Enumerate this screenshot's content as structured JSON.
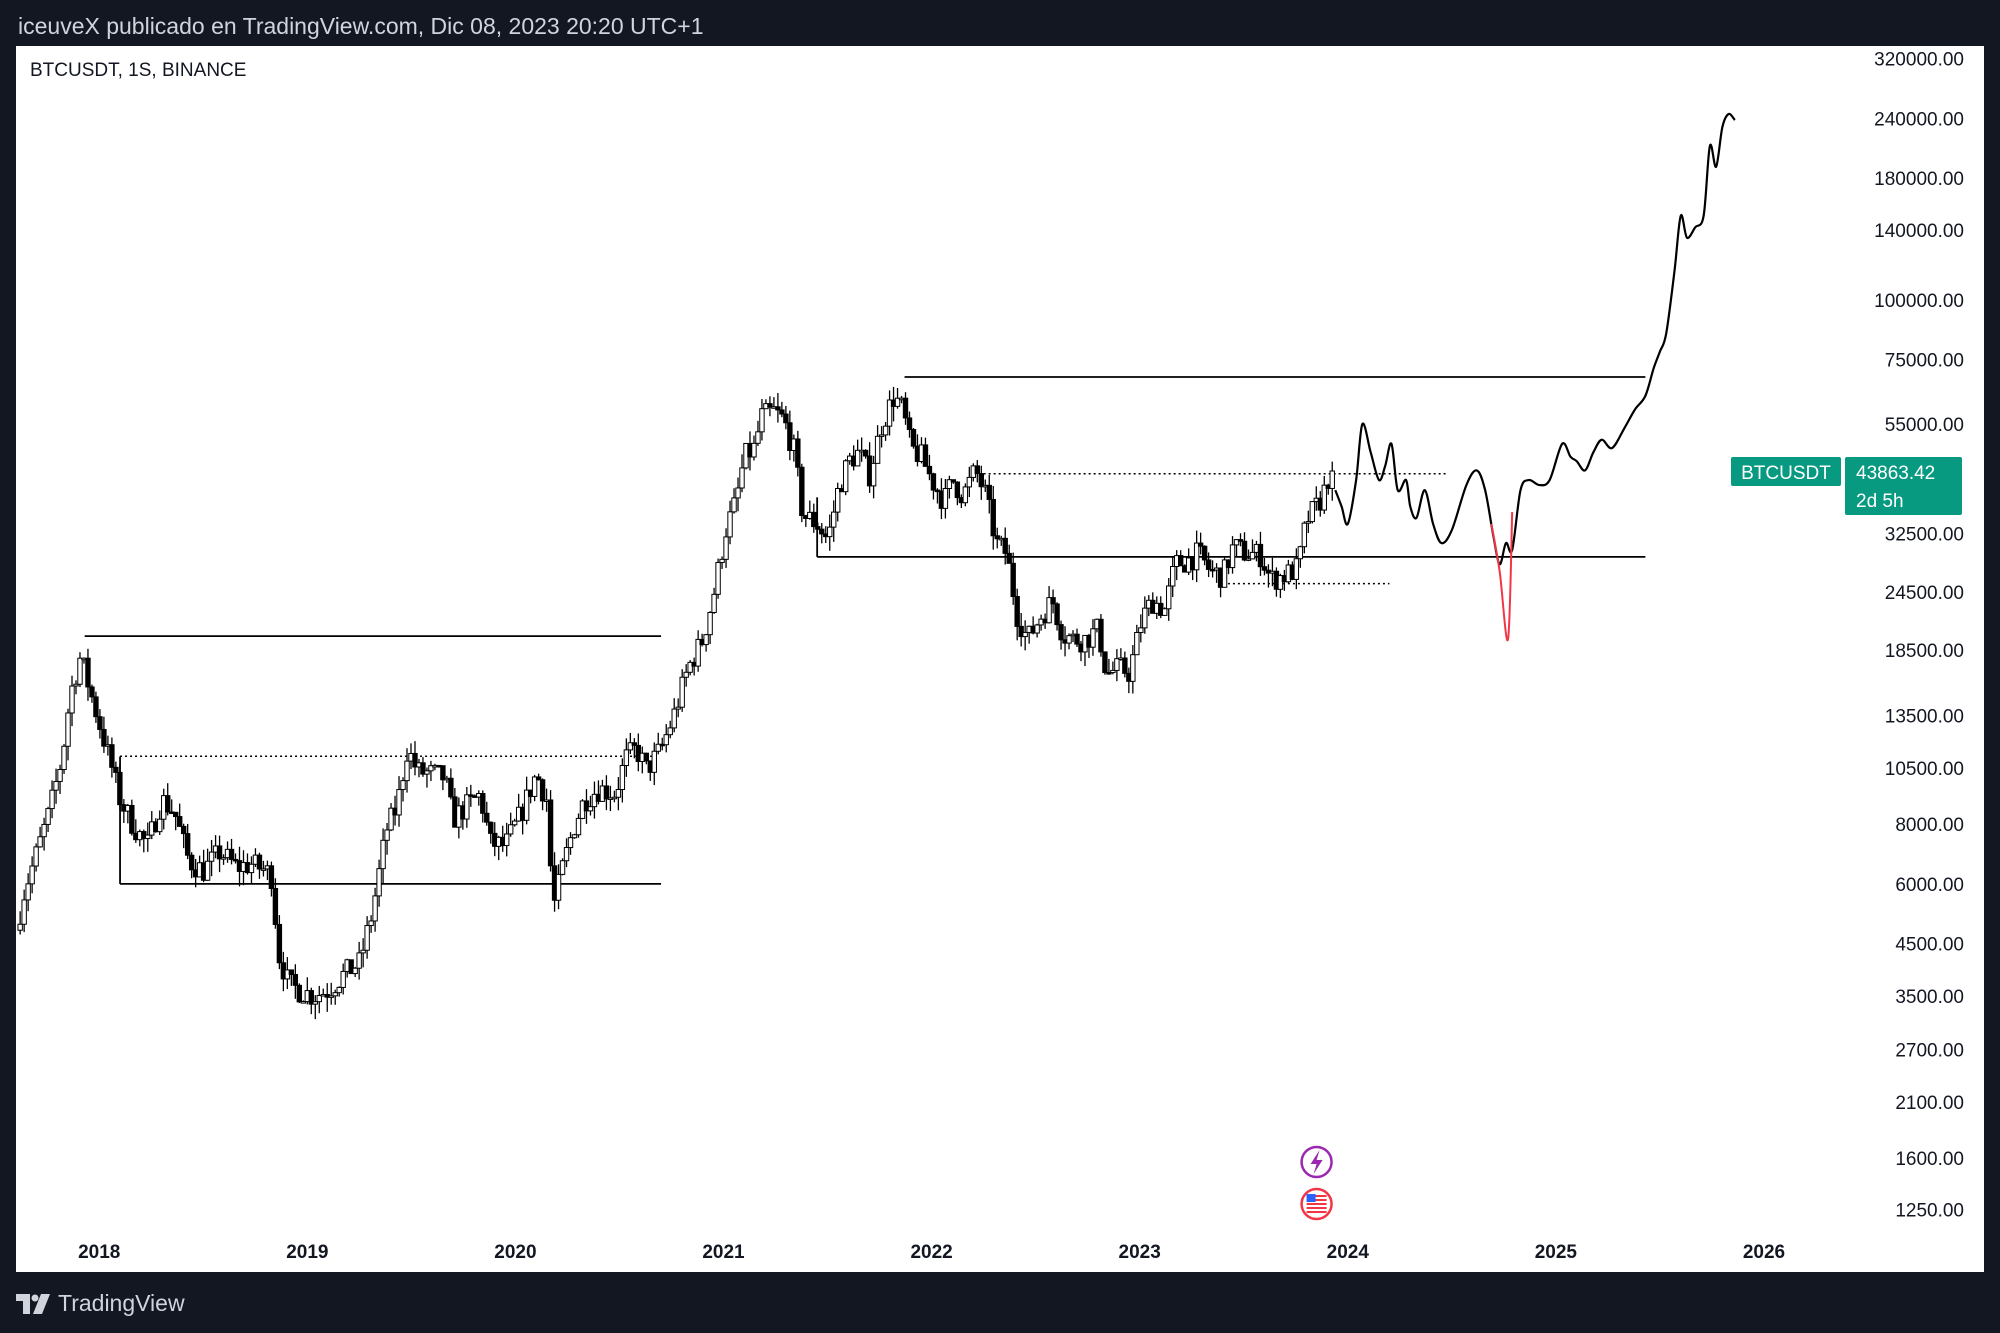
{
  "header": {
    "text": "iceuveX publicado en TradingView.com, Dic 08, 2023 20:20 UTC+1"
  },
  "footer": {
    "brand": "TradingView"
  },
  "chart_data": {
    "type": "candlestick",
    "title": "BTCUSDT, 1S, BINANCE",
    "y_scale": "log",
    "ylim": [
      1100,
      340000
    ],
    "xlim": [
      2017.6,
      2026.25
    ],
    "y_ticks": [
      {
        "value": 320000,
        "label": "320000.00"
      },
      {
        "value": 240000,
        "label": "240000.00"
      },
      {
        "value": 180000,
        "label": "180000.00"
      },
      {
        "value": 140000,
        "label": "140000.00"
      },
      {
        "value": 100000,
        "label": "100000.00"
      },
      {
        "value": 75000,
        "label": "75000.00"
      },
      {
        "value": 55000,
        "label": "55000.00"
      },
      {
        "value": 32500,
        "label": "32500.00"
      },
      {
        "value": 24500,
        "label": "24500.00"
      },
      {
        "value": 18500,
        "label": "18500.00"
      },
      {
        "value": 13500,
        "label": "13500.00"
      },
      {
        "value": 10500,
        "label": "10500.00"
      },
      {
        "value": 8000,
        "label": "8000.00"
      },
      {
        "value": 6000,
        "label": "6000.00"
      },
      {
        "value": 4500,
        "label": "4500.00"
      },
      {
        "value": 3500,
        "label": "3500.00"
      },
      {
        "value": 2700,
        "label": "2700.00"
      },
      {
        "value": 2100,
        "label": "2100.00"
      },
      {
        "value": 1600,
        "label": "1600.00"
      },
      {
        "value": 1250,
        "label": "1250.00"
      }
    ],
    "x_ticks": [
      {
        "value": 2018,
        "label": "2018"
      },
      {
        "value": 2019,
        "label": "2019"
      },
      {
        "value": 2020,
        "label": "2020"
      },
      {
        "value": 2021,
        "label": "2021"
      },
      {
        "value": 2022,
        "label": "2022"
      },
      {
        "value": 2023,
        "label": "2023"
      },
      {
        "value": 2024,
        "label": "2024"
      },
      {
        "value": 2025,
        "label": "2025"
      },
      {
        "value": 2026,
        "label": "2026"
      }
    ],
    "price_anchors": [
      [
        2017.62,
        4800
      ],
      [
        2017.66,
        5800
      ],
      [
        2017.72,
        7000
      ],
      [
        2017.78,
        8500
      ],
      [
        2017.84,
        11000
      ],
      [
        2017.88,
        15000
      ],
      [
        2017.93,
        18000
      ],
      [
        2017.97,
        15500
      ],
      [
        2018.02,
        13000
      ],
      [
        2018.08,
        10500
      ],
      [
        2018.12,
        9000
      ],
      [
        2018.18,
        8000
      ],
      [
        2018.25,
        7200
      ],
      [
        2018.32,
        9000
      ],
      [
        2018.38,
        8500
      ],
      [
        2018.45,
        6700
      ],
      [
        2018.52,
        6400
      ],
      [
        2018.6,
        7000
      ],
      [
        2018.68,
        6500
      ],
      [
        2018.75,
        6600
      ],
      [
        2018.82,
        6400
      ],
      [
        2018.85,
        6200
      ],
      [
        2018.88,
        4300
      ],
      [
        2018.93,
        3700
      ],
      [
        2018.98,
        3600
      ],
      [
        2019.05,
        3500
      ],
      [
        2019.12,
        3600
      ],
      [
        2019.2,
        3900
      ],
      [
        2019.27,
        4100
      ],
      [
        2019.33,
        5200
      ],
      [
        2019.4,
        7800
      ],
      [
        2019.45,
        8700
      ],
      [
        2019.5,
        11500
      ],
      [
        2019.55,
        10300
      ],
      [
        2019.62,
        10200
      ],
      [
        2019.68,
        10000
      ],
      [
        2019.72,
        8200
      ],
      [
        2019.78,
        8700
      ],
      [
        2019.85,
        9200
      ],
      [
        2019.9,
        7300
      ],
      [
        2019.97,
        7200
      ],
      [
        2020.05,
        8500
      ],
      [
        2020.12,
        10200
      ],
      [
        2020.17,
        9000
      ],
      [
        2020.2,
        5300
      ],
      [
        2020.25,
        6600
      ],
      [
        2020.3,
        7900
      ],
      [
        2020.35,
        9000
      ],
      [
        2020.42,
        9500
      ],
      [
        2020.5,
        9300
      ],
      [
        2020.55,
        11000
      ],
      [
        2020.6,
        11500
      ],
      [
        2020.65,
        10400
      ],
      [
        2020.72,
        11500
      ],
      [
        2020.78,
        13500
      ],
      [
        2020.85,
        17000
      ],
      [
        2020.92,
        19500
      ],
      [
        2020.97,
        24000
      ],
      [
        2021.03,
        33000
      ],
      [
        2021.08,
        38000
      ],
      [
        2021.12,
        47000
      ],
      [
        2021.17,
        49000
      ],
      [
        2021.2,
        57000
      ],
      [
        2021.26,
        58500
      ],
      [
        2021.31,
        56000
      ],
      [
        2021.36,
        48000
      ],
      [
        2021.4,
        35500
      ],
      [
        2021.47,
        34000
      ],
      [
        2021.52,
        31500
      ],
      [
        2021.57,
        40000
      ],
      [
        2021.62,
        46000
      ],
      [
        2021.67,
        48000
      ],
      [
        2021.72,
        43000
      ],
      [
        2021.78,
        55000
      ],
      [
        2021.84,
        63000
      ],
      [
        2021.88,
        59000
      ],
      [
        2021.92,
        49000
      ],
      [
        2021.97,
        47000
      ],
      [
        2022.02,
        42000
      ],
      [
        2022.08,
        38000
      ],
      [
        2022.12,
        42000
      ],
      [
        2022.17,
        39000
      ],
      [
        2022.23,
        44000
      ],
      [
        2022.28,
        39000
      ],
      [
        2022.33,
        31000
      ],
      [
        2022.38,
        29500
      ],
      [
        2022.43,
        22000
      ],
      [
        2022.48,
        19500
      ],
      [
        2022.55,
        22000
      ],
      [
        2022.6,
        23500
      ],
      [
        2022.65,
        20000
      ],
      [
        2022.7,
        19500
      ],
      [
        2022.76,
        19500
      ],
      [
        2022.82,
        20500
      ],
      [
        2022.86,
        16500
      ],
      [
        2022.92,
        17000
      ],
      [
        2022.97,
        16600
      ],
      [
        2023.03,
        21500
      ],
      [
        2023.08,
        23500
      ],
      [
        2023.14,
        22500
      ],
      [
        2023.19,
        28000
      ],
      [
        2023.25,
        28500
      ],
      [
        2023.3,
        29500
      ],
      [
        2023.36,
        27000
      ],
      [
        2023.42,
        26500
      ],
      [
        2023.47,
        30500
      ],
      [
        2023.53,
        29500
      ],
      [
        2023.6,
        29300
      ],
      [
        2023.65,
        26000
      ],
      [
        2023.72,
        26600
      ],
      [
        2023.78,
        27500
      ],
      [
        2023.82,
        34500
      ],
      [
        2023.87,
        37000
      ],
      [
        2023.9,
        39000
      ],
      [
        2023.935,
        43863
      ]
    ],
    "drawings": {
      "boxes": [
        {
          "x1": 2017.93,
          "x2": 2020.7,
          "y_top": 19800,
          "y_bottom": 6000,
          "left_edge_x": 2018.1
        },
        {
          "x1": 2021.87,
          "x2": 2025.43,
          "y_top": 69000,
          "y_bottom": 29000,
          "left_edge_x": 2021.45
        }
      ],
      "dotted_lines": [
        {
          "x1": 2018.1,
          "x2": 2020.66,
          "y": 11100
        },
        {
          "x1": 2022.25,
          "x2": 2024.47,
          "y": 43300
        },
        {
          "x1": 2023.4,
          "x2": 2024.2,
          "y": 25500
        }
      ],
      "projection": [
        [
          2023.94,
          40000
        ],
        [
          2023.97,
          37000
        ],
        [
          2024.0,
          34000
        ],
        [
          2024.04,
          42000
        ],
        [
          2024.07,
          55000
        ],
        [
          2024.11,
          48000
        ],
        [
          2024.15,
          42000
        ],
        [
          2024.18,
          45000
        ],
        [
          2024.21,
          50000
        ],
        [
          2024.24,
          40000
        ],
        [
          2024.28,
          42000
        ],
        [
          2024.3,
          37000
        ],
        [
          2024.33,
          35000
        ],
        [
          2024.37,
          40000
        ],
        [
          2024.41,
          34000
        ],
        [
          2024.45,
          31000
        ],
        [
          2024.5,
          33000
        ],
        [
          2024.57,
          41000
        ],
        [
          2024.62,
          44000
        ],
        [
          2024.66,
          40000
        ],
        [
          2024.7,
          32000
        ],
        [
          2024.73,
          28000
        ],
        [
          2024.76,
          31000
        ],
        [
          2024.79,
          30000
        ],
        [
          2024.83,
          40000
        ],
        [
          2024.87,
          42000
        ],
        [
          2024.92,
          41000
        ],
        [
          2024.97,
          42000
        ],
        [
          2025.03,
          50000
        ],
        [
          2025.07,
          47000
        ],
        [
          2025.1,
          46000
        ],
        [
          2025.14,
          44000
        ],
        [
          2025.18,
          48000
        ],
        [
          2025.22,
          51000
        ],
        [
          2025.27,
          49000
        ],
        [
          2025.33,
          54000
        ],
        [
          2025.38,
          59000
        ],
        [
          2025.43,
          63000
        ],
        [
          2025.47,
          72000
        ],
        [
          2025.5,
          78000
        ],
        [
          2025.53,
          85000
        ],
        [
          2025.57,
          115000
        ],
        [
          2025.6,
          150000
        ],
        [
          2025.63,
          135000
        ],
        [
          2025.67,
          142000
        ],
        [
          2025.71,
          150000
        ],
        [
          2025.74,
          210000
        ],
        [
          2025.77,
          190000
        ],
        [
          2025.8,
          230000
        ],
        [
          2025.83,
          245000
        ],
        [
          2025.86,
          238000
        ]
      ],
      "red_wick": [
        [
          2024.69,
          34000
        ],
        [
          2024.73,
          27000
        ],
        [
          2024.77,
          19500
        ],
        [
          2024.79,
          36000
        ]
      ]
    },
    "last_price": {
      "symbol": "BTCUSDT",
      "price": "43863.42",
      "countdown": "2d 5h",
      "color": "#089981"
    },
    "colors": {
      "candles": "#000000",
      "drawings": "#000000",
      "red_wick": "#f23645",
      "lightning_icon": "#9c27b0",
      "flag_icon": "#f23645",
      "badge": "#089981"
    },
    "event_icons": [
      "lightning-icon",
      "us-flag-icon"
    ]
  }
}
